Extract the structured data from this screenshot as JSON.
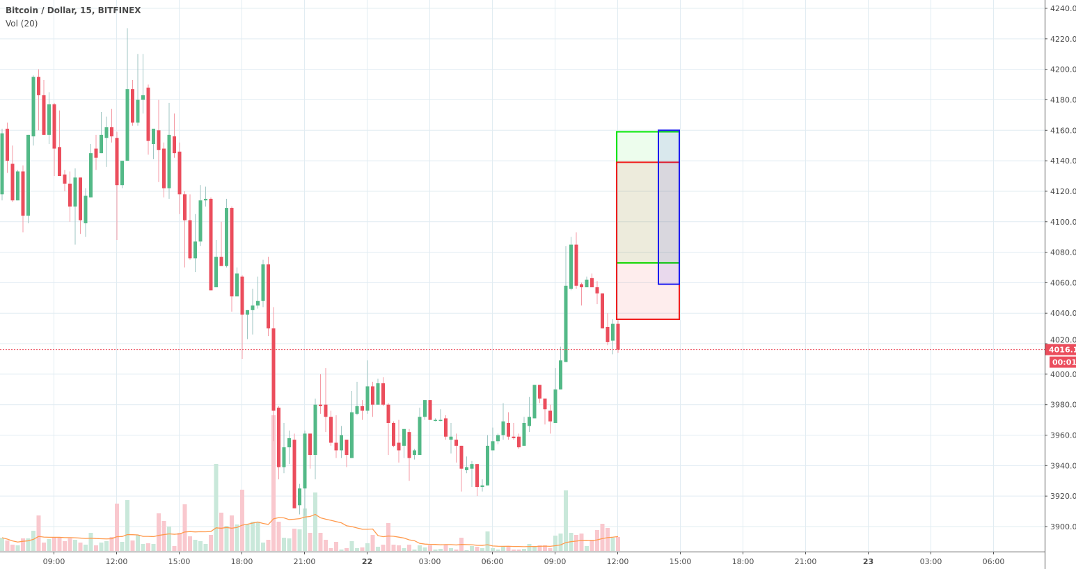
{
  "header": {
    "title": "Bitcoin / Dollar, 15, BITFINEX",
    "indicator": "Vol (20)"
  },
  "colors": {
    "up": "#53b987",
    "down": "#eb4d5c",
    "up_wick": "#9fc6c3",
    "down_wick": "#f49aa4",
    "up_volume": "#c9e8da",
    "down_volume": "#f9c8ce",
    "volume_ma": "#ff9a4d",
    "grid": "#e1ecf2",
    "axis_text": "#4a4a4a",
    "price_line": "#eb4d5c"
  },
  "chart_data": {
    "type": "candlestick",
    "symbol": "Bitcoin / Dollar",
    "interval": "15",
    "exchange": "BITFINEX",
    "y_ticks": [
      "4240.0",
      "4220.0",
      "4200.0",
      "4180.0",
      "4160.0",
      "4140.0",
      "4120.0",
      "4100.0",
      "4080.0",
      "4060.0",
      "4040.0",
      "4020.0",
      "4000.0",
      "3980.0",
      "3960.0",
      "3940.0",
      "3920.0",
      "3900.0"
    ],
    "ylim": [
      3900,
      4240
    ],
    "x_ticks": [
      "09:00",
      "12:00",
      "15:00",
      "18:00",
      "21:00",
      "22",
      "03:00",
      "06:00",
      "09:00",
      "12:00",
      "15:00",
      "18:00",
      "21:00",
      "23",
      "03:00",
      "06:00"
    ],
    "grid": true,
    "last_price": "4016.1",
    "countdown": "00:01",
    "ohlc": [
      [
        4118,
        4161,
        4114,
        4158
      ],
      [
        4161,
        4165,
        4132,
        4140
      ],
      [
        4138,
        4150,
        4113,
        4114
      ],
      [
        4114,
        4134,
        4114,
        4133
      ],
      [
        4133,
        4137,
        4093,
        4104
      ],
      [
        4104,
        4157,
        4099,
        4157
      ],
      [
        4156,
        4196,
        4150,
        4195
      ],
      [
        4195,
        4200,
        4160,
        4183
      ],
      [
        4183,
        4193,
        4157,
        4157
      ],
      [
        4157,
        4185,
        4151,
        4177
      ],
      [
        4177,
        4178,
        4130,
        4148
      ],
      [
        4149,
        4173,
        4130,
        4130
      ],
      [
        4131,
        4134,
        4120,
        4125
      ],
      [
        4125,
        4133,
        4100,
        4110
      ],
      [
        4110,
        4135,
        4085,
        4129
      ],
      [
        4129,
        4129,
        4092,
        4101
      ],
      [
        4099,
        4122,
        4090,
        4117
      ],
      [
        4116,
        4151,
        4116,
        4145
      ],
      [
        4148,
        4157,
        4134,
        4142
      ],
      [
        4145,
        4172,
        4145,
        4157
      ],
      [
        4155,
        4169,
        4136,
        4162
      ],
      [
        4162,
        4174,
        4152,
        4156
      ],
      [
        4155,
        4159,
        4088,
        4124
      ],
      [
        4124,
        4140,
        4122,
        4140
      ],
      [
        4140,
        4227,
        4140,
        4187
      ],
      [
        4187,
        4193,
        4163,
        4165
      ],
      [
        4165,
        4210,
        4163,
        4180
      ],
      [
        4180,
        4210,
        4171,
        4183
      ],
      [
        4188,
        4190,
        4144,
        4153
      ],
      [
        4151,
        4161,
        4141,
        4161
      ],
      [
        4160,
        4180,
        4126,
        4147
      ],
      [
        4148,
        4152,
        4116,
        4122
      ],
      [
        4122,
        4178,
        4115,
        4157
      ],
      [
        4156,
        4171,
        4142,
        4145
      ],
      [
        4146,
        4152,
        4105,
        4118
      ],
      [
        4118,
        4120,
        4070,
        4101
      ],
      [
        4101,
        4118,
        4075,
        4076
      ],
      [
        4076,
        4105,
        4067,
        4087
      ],
      [
        4087,
        4124,
        4084,
        4114
      ],
      [
        4114,
        4123,
        4110,
        4115
      ],
      [
        4115,
        4116,
        4055,
        4055
      ],
      [
        4057,
        4088,
        4057,
        4077
      ],
      [
        4077,
        4100,
        4071,
        4071
      ],
      [
        4071,
        4115,
        4070,
        4109
      ],
      [
        4109,
        4110,
        4041,
        4051
      ],
      [
        4051,
        4070,
        4051,
        4066
      ],
      [
        4064,
        4065,
        4010,
        4039
      ],
      [
        4039,
        4042,
        4023,
        4042
      ],
      [
        4042,
        4056,
        4026,
        4045
      ],
      [
        4045,
        4064,
        4043,
        4048
      ],
      [
        4048,
        4075,
        4044,
        4072
      ],
      [
        4072,
        4077,
        4025,
        4030
      ],
      [
        4030,
        4044,
        3956,
        3976
      ],
      [
        3978,
        3979,
        3931,
        3939
      ],
      [
        3939,
        3968,
        3935,
        3952
      ],
      [
        3952,
        3963,
        3941,
        3958
      ],
      [
        3957,
        3961,
        3912,
        3912
      ],
      [
        3914,
        3928,
        3908,
        3925
      ],
      [
        3925,
        3963,
        3907,
        3961
      ],
      [
        3961,
        3961,
        3938,
        3947
      ],
      [
        3947,
        3984,
        3931,
        3980
      ],
      [
        3980,
        4000,
        3974,
        3979
      ],
      [
        3980,
        4004,
        3962,
        3972
      ],
      [
        3972,
        3976,
        3953,
        3955
      ],
      [
        3955,
        3973,
        3945,
        3950
      ],
      [
        3950,
        3966,
        3945,
        3960
      ],
      [
        3957,
        3957,
        3939,
        3947
      ],
      [
        3945,
        3989,
        3945,
        3975
      ],
      [
        3974,
        3995,
        3973,
        3979
      ],
      [
        3979,
        3983,
        3970,
        3976
      ],
      [
        3976,
        4009,
        3974,
        3992
      ],
      [
        3992,
        3995,
        3972,
        3980
      ],
      [
        3980,
        3997,
        3980,
        3994
      ],
      [
        3994,
        3998,
        3979,
        3980
      ],
      [
        3980,
        3981,
        3947,
        3968
      ],
      [
        3968,
        3969,
        3952,
        3953
      ],
      [
        3955,
        3970,
        3942,
        3950
      ],
      [
        3953,
        3964,
        3945,
        3964
      ],
      [
        3962,
        3964,
        3930,
        3945
      ],
      [
        3947,
        3951,
        3944,
        3950
      ],
      [
        3947,
        3978,
        3947,
        3972
      ],
      [
        3972,
        3983,
        3970,
        3983
      ],
      [
        3983,
        3983,
        3970,
        3970
      ],
      [
        3970,
        3971,
        3969,
        3970
      ],
      [
        3970,
        3977,
        3969,
        3970
      ],
      [
        3971,
        3973,
        3957,
        3959
      ],
      [
        3957,
        3968,
        3948,
        3959
      ],
      [
        3957,
        3961,
        3942,
        3953
      ],
      [
        3953,
        3953,
        3923,
        3938
      ],
      [
        3937,
        3946,
        3935,
        3939
      ],
      [
        3938,
        3943,
        3926,
        3941
      ],
      [
        3941,
        3941,
        3920,
        3926
      ],
      [
        3926,
        3931,
        3923,
        3927
      ],
      [
        3927,
        3960,
        3927,
        3953
      ],
      [
        3950,
        3965,
        3950,
        3956
      ],
      [
        3956,
        3961,
        3954,
        3960
      ],
      [
        3960,
        3981,
        3957,
        3969
      ],
      [
        3968,
        3975,
        3957,
        3959
      ],
      [
        3959,
        3968,
        3957,
        3958
      ],
      [
        3959,
        3961,
        3951,
        3952
      ],
      [
        3953,
        3972,
        3953,
        3968
      ],
      [
        3966,
        3985,
        3962,
        3972
      ],
      [
        3971,
        3993,
        3971,
        3993
      ],
      [
        3993,
        3993,
        3981,
        3984
      ],
      [
        3984,
        3984,
        3967,
        3977
      ],
      [
        3976,
        3980,
        3961,
        3969
      ],
      [
        3968,
        4004,
        3968,
        3990
      ],
      [
        3990,
        4018,
        3990,
        4009
      ],
      [
        4008,
        4084,
        4008,
        4058
      ],
      [
        4056,
        4090,
        4055,
        4085
      ],
      [
        4085,
        4093,
        4056,
        4058
      ],
      [
        4059,
        4060,
        4045,
        4057
      ],
      [
        4057,
        4064,
        4057,
        4062
      ],
      [
        4063,
        4066,
        4057,
        4057
      ],
      [
        4057,
        4061,
        4046,
        4053
      ],
      [
        4053,
        4053,
        4030,
        4030
      ],
      [
        4031,
        4040,
        4019,
        4021
      ],
      [
        4022,
        4036,
        4013,
        4033
      ],
      [
        4033,
        4036,
        4014,
        4016.1
      ]
    ],
    "volume": [
      19,
      15,
      9,
      8,
      18,
      18,
      29,
      51,
      12,
      17,
      19,
      20,
      14,
      18,
      16,
      12,
      9,
      26,
      8,
      12,
      14,
      20,
      68,
      13,
      73,
      15,
      23,
      10,
      11,
      10,
      54,
      43,
      35,
      7,
      26,
      67,
      21,
      16,
      14,
      10,
      23,
      125,
      55,
      36,
      51,
      38,
      88,
      38,
      42,
      42,
      12,
      16,
      195,
      42,
      19,
      18,
      32,
      31,
      61,
      26,
      84,
      26,
      16,
      4,
      13,
      2,
      4,
      14,
      4,
      5,
      11,
      23,
      6,
      9,
      40,
      9,
      8,
      4,
      9,
      2,
      8,
      5,
      8,
      2,
      3,
      9,
      4,
      2,
      19,
      1,
      7,
      6,
      4,
      28,
      4,
      2,
      6,
      6,
      2,
      2,
      3,
      10,
      6,
      8,
      8,
      4,
      22,
      25,
      87,
      26,
      23,
      25,
      7,
      16,
      30,
      39,
      33,
      19,
      20
    ],
    "volume_ma_length": 20,
    "drawings": [
      {
        "type": "rectangle",
        "color": "#00e600",
        "fill": "rgba(0,230,0,0.07)",
        "price_top": 4159,
        "price_bottom": 4073,
        "time_start": "22 12:00",
        "time_end": "22 15:00"
      },
      {
        "type": "rectangle",
        "color": "#f01e1e",
        "fill": "rgba(240,30,30,0.08)",
        "price_top": 4139,
        "price_bottom": 4036,
        "time_start": "22 12:00",
        "time_end": "22 15:00"
      },
      {
        "type": "rectangle",
        "color": "#1b1bf0",
        "fill": "rgba(27,27,240,0.09)",
        "price_top": 4160,
        "price_bottom": 4059,
        "time_start": "22 14:00",
        "time_end": "22 15:00"
      }
    ]
  }
}
